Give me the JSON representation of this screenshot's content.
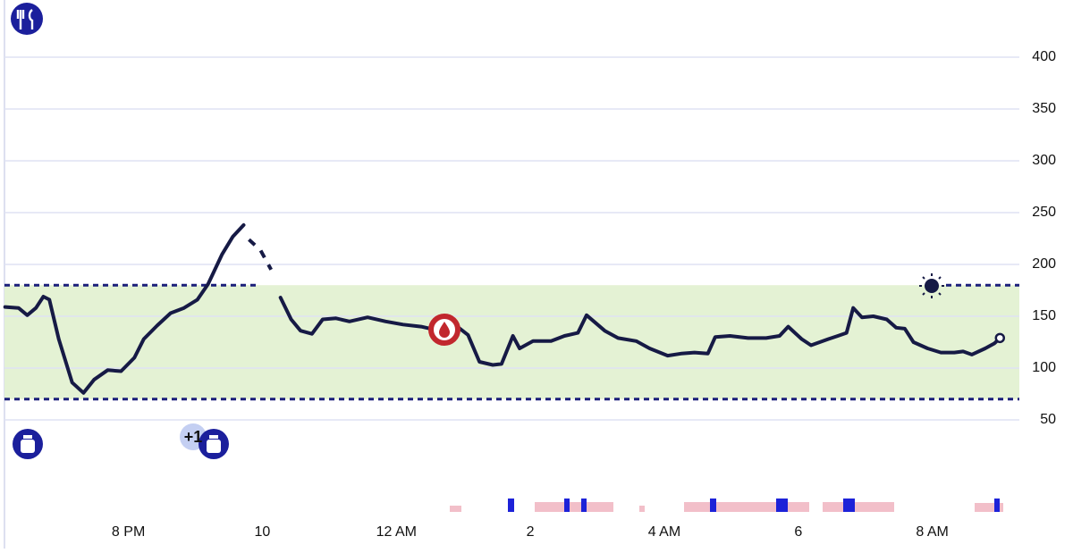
{
  "chart_data": {
    "type": "line",
    "ylim": [
      50,
      400
    ],
    "yticks": [
      50,
      100,
      150,
      200,
      250,
      300,
      350,
      400
    ],
    "xlim": [
      18.15,
      33.3
    ],
    "xticks": [
      {
        "value": 20,
        "label": "8 PM"
      },
      {
        "value": 22,
        "label": "10"
      },
      {
        "value": 24,
        "label": "12 AM"
      },
      {
        "value": 26,
        "label": "2"
      },
      {
        "value": 28,
        "label": "4 AM"
      },
      {
        "value": 30,
        "label": "6"
      },
      {
        "value": 32,
        "label": "8 AM"
      }
    ],
    "grid": true,
    "target_range": {
      "low": 70,
      "high": 180,
      "color": "#e4f2d4"
    },
    "series": [
      {
        "color": "#161a45",
        "dashed": false,
        "x": [
          18.16,
          18.36,
          18.49,
          18.62,
          18.73,
          18.82,
          18.96,
          19.16,
          19.33,
          19.49,
          19.69,
          19.89,
          20.09,
          20.23,
          20.43,
          20.63,
          20.83,
          21.03,
          21.19,
          21.4,
          21.56,
          21.72,
          22.0,
          22.27,
          22.43,
          22.57,
          22.74,
          22.9,
          23.1,
          23.3,
          23.57,
          23.84,
          24.1,
          24.37,
          24.64,
          24.91,
          25.07,
          25.24,
          25.44,
          25.57,
          25.74,
          25.84,
          26.04,
          26.31,
          26.51,
          26.71,
          26.84,
          27.11,
          27.31,
          27.58,
          27.78,
          28.05,
          28.25,
          28.45,
          28.65,
          28.76,
          28.98,
          29.25,
          29.52,
          29.72,
          29.85,
          30.05,
          30.19,
          30.45,
          30.59,
          30.72,
          30.82,
          30.95,
          31.12,
          31.32,
          31.46,
          31.59,
          31.72,
          31.93,
          32.13,
          32.33,
          32.46,
          32.59,
          32.79,
          32.93,
          33.01
        ],
        "values": [
          159,
          158,
          151,
          158,
          169,
          166,
          128,
          86,
          76,
          89,
          98,
          97,
          110,
          128,
          141,
          153,
          158,
          166,
          181,
          210,
          227,
          238,
          null,
          168,
          147,
          136,
          133,
          147,
          148,
          145,
          149,
          145,
          142,
          140,
          136,
          140,
          132,
          106,
          103,
          104,
          131,
          119,
          126,
          126,
          131,
          134,
          151,
          136,
          129,
          126,
          119,
          112,
          114,
          115,
          114,
          130,
          131,
          129,
          129,
          131,
          140,
          128,
          122,
          128,
          131,
          134,
          158,
          149,
          150,
          147,
          139,
          138,
          125,
          119,
          115,
          115,
          116,
          113,
          119,
          124,
          129
        ]
      },
      {
        "color": "#161a45",
        "dashed": true,
        "x": [
          21.8,
          21.97,
          22.13
        ],
        "values": [
          224,
          214,
          195
        ]
      }
    ],
    "annotations": {
      "bolus_count": "+1"
    }
  }
}
